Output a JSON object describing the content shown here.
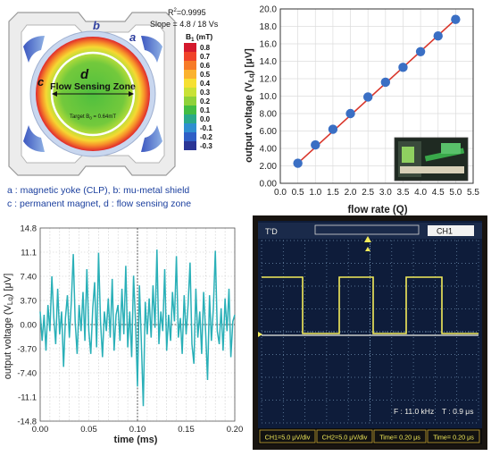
{
  "panel_magnet": {
    "letters": {
      "a": "a",
      "b": "b",
      "c": "c",
      "d": "d"
    },
    "zone_label": "Flow Sensing Zone",
    "target_label": "Target B",
    "target_sub": "0",
    "target_value": " = 0.64mT",
    "colorbar_title": "B",
    "colorbar_sub": "1",
    "colorbar_unit": " (mT)",
    "colorbar_ticks": [
      "0.8",
      "0.7",
      "0.6",
      "0.5",
      "0.4",
      "0.3",
      "0.2",
      "0.1",
      "0.0",
      "-0.1",
      "-0.2",
      "-0.3"
    ],
    "colorbar_colors": [
      "#d4192d",
      "#f0432a",
      "#f77b28",
      "#fbb22e",
      "#f6e032",
      "#c9e236",
      "#8fd23a",
      "#43bd43",
      "#2aa98a",
      "#2f8fd0",
      "#2f5fc6",
      "#2a3596"
    ],
    "legend_text": "R",
    "legend_sup": "2",
    "legend_value": "=0.9995",
    "legend_slope": "Slope = 4.8 / 18 Vs",
    "caption_line1": "a : magnetic yoke (CLP), b: mu-metal shield",
    "caption_line2": "c : permanent magnet, d : flow sensing zone"
  },
  "panel_oscilloscope": {
    "trigger_label": "T'D",
    "channel_label": "CH1",
    "freq_label": "F : 11.0 kHz",
    "period_label": "T : 0.9 μs",
    "footer": [
      "CH1=5.0 μV/div",
      "CH2=5.0 μV/div",
      "Time= 0.20 μs",
      "Time= 0.20 μs"
    ],
    "colors": {
      "trace": "#f3ec5a",
      "trace2": "#f0efe8",
      "grid": "#6f8fb0",
      "screen": "#0e1c3a"
    }
  },
  "chart_data": [
    {
      "type": "scatter",
      "title": "",
      "xlabel": "flow rate (Q)",
      "ylabel": "output voltage (V",
      "ylabel_sub": "Lq",
      "ylabel_unit": ") [μV]",
      "x": [
        0.5,
        1.0,
        1.5,
        2.0,
        2.5,
        3.0,
        3.5,
        4.0,
        4.5,
        5.0
      ],
      "y": [
        2.3,
        4.4,
        6.2,
        8.0,
        9.9,
        11.6,
        13.3,
        15.1,
        16.9,
        18.8
      ],
      "fit_line": {
        "x": [
          0.5,
          5.0
        ],
        "y": [
          2.3,
          18.8
        ]
      },
      "xlim": [
        0.0,
        5.5
      ],
      "ylim": [
        0.0,
        20.0
      ],
      "xticks": [
        "0.0",
        "0.5",
        "1.0",
        "1.5",
        "2.0",
        "2.5",
        "3.0",
        "3.5",
        "4.0",
        "4.5",
        "5.0",
        "5.5"
      ],
      "yticks": [
        "0.00",
        "2.00",
        "4.00",
        "6.00",
        "8.00",
        "10.0",
        "12.0",
        "14.0",
        "16.0",
        "18.0",
        "20.0"
      ],
      "grid": true,
      "colors": {
        "points": "#3a6fc4",
        "line": "#d9362b"
      }
    },
    {
      "type": "line",
      "title": "",
      "xlabel": "time (ms)",
      "ylabel": "output voltage (V",
      "ylabel_sub": "Lq",
      "ylabel_unit": ") [μV]",
      "xlim": [
        0.0,
        0.2
      ],
      "ylim": [
        -14.8,
        14.8
      ],
      "xticks": [
        "0.00",
        "0.05",
        "0.10",
        "0.15",
        "0.20"
      ],
      "yticks": [
        "14.8",
        "11.1",
        "7.40",
        "3.70",
        "0.00",
        "-3.70",
        "-7.40",
        "-11.1",
        "-14.8"
      ],
      "grid": true,
      "x": [
        0.0,
        0.002,
        0.004,
        0.006,
        0.008,
        0.01,
        0.012,
        0.014,
        0.016,
        0.018,
        0.02,
        0.022,
        0.024,
        0.026,
        0.028,
        0.03,
        0.032,
        0.034,
        0.036,
        0.038,
        0.04,
        0.042,
        0.044,
        0.046,
        0.048,
        0.05,
        0.052,
        0.054,
        0.056,
        0.058,
        0.06,
        0.062,
        0.064,
        0.066,
        0.068,
        0.07,
        0.072,
        0.074,
        0.076,
        0.078,
        0.08,
        0.082,
        0.084,
        0.086,
        0.088,
        0.09,
        0.092,
        0.094,
        0.096,
        0.098,
        0.1,
        0.102,
        0.104,
        0.106,
        0.108,
        0.11,
        0.112,
        0.114,
        0.116,
        0.118,
        0.12,
        0.122,
        0.124,
        0.126,
        0.128,
        0.13,
        0.132,
        0.134,
        0.136,
        0.138,
        0.14,
        0.142,
        0.144,
        0.146,
        0.148,
        0.15,
        0.152,
        0.154,
        0.156,
        0.158,
        0.16,
        0.162,
        0.164,
        0.166,
        0.168,
        0.17,
        0.172,
        0.174,
        0.176,
        0.178,
        0.18,
        0.182,
        0.184,
        0.186,
        0.188,
        0.19,
        0.192,
        0.194,
        0.196,
        0.198,
        0.2
      ],
      "y": [
        2.0,
        -2.5,
        1.5,
        -4.0,
        3.0,
        -1.0,
        7.4,
        1.0,
        -3.0,
        5.5,
        -1.5,
        2.0,
        -6.5,
        1.0,
        4.5,
        -2.0,
        3.5,
        10.8,
        0.5,
        -4.5,
        3.0,
        -1.0,
        5.0,
        -2.5,
        8.5,
        -1.0,
        -4.5,
        2.5,
        6.5,
        -3.5,
        11.0,
        0.5,
        -5.0,
        2.0,
        -1.0,
        4.0,
        -2.0,
        7.0,
        -4.0,
        1.5,
        3.0,
        -2.5,
        5.5,
        -1.5,
        9.0,
        -3.5,
        2.0,
        -5.0,
        7.5,
        0.5,
        -9.5,
        6.0,
        -3.0,
        -12.5,
        3.5,
        -1.5,
        4.0,
        -2.0,
        6.0,
        -0.5,
        11.5,
        -3.0,
        2.0,
        -1.0,
        8.5,
        -4.0,
        1.5,
        -2.5,
        5.0,
        0.5,
        10.5,
        -2.0,
        1.0,
        -4.5,
        4.5,
        -1.5,
        3.0,
        9.5,
        -3.0,
        -6.0,
        5.5,
        -2.0,
        2.0,
        -4.5,
        5.0,
        -1.0,
        -8.5,
        4.5,
        -2.5,
        2.5,
        11.3,
        -1.0,
        -3.0,
        2.5,
        -4.0,
        4.0,
        -1.0,
        5.5,
        -5.0,
        0.5,
        1.5
      ],
      "colors": {
        "line": "#2ab0b8"
      }
    }
  ]
}
